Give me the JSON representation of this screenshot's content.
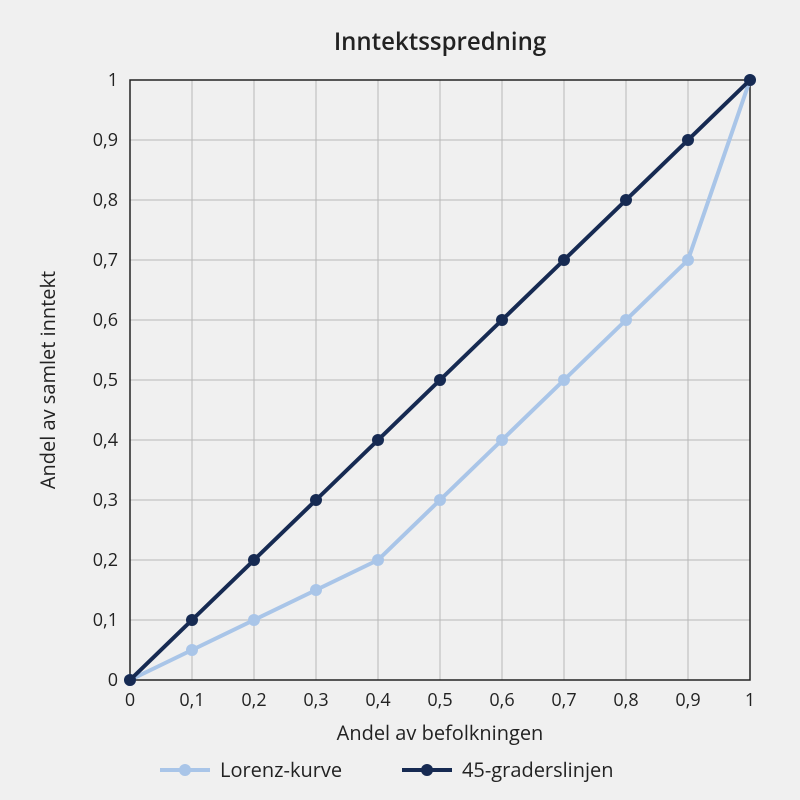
{
  "chart": {
    "type": "line",
    "title": "Inntektsspredning",
    "title_fontsize": 24,
    "xlabel": "Andel av befolkningen",
    "ylabel": "Andel av samlet inntekt",
    "label_fontsize": 20,
    "tick_fontsize": 18,
    "background_color": "#f0f0f0",
    "plot_background_color": "#f0f0f0",
    "grid_color": "#b8b8b8",
    "axis_color": "#222222",
    "xlim": [
      0,
      1
    ],
    "ylim": [
      0,
      1
    ],
    "xticks": [
      0,
      0.1,
      0.2,
      0.3,
      0.4,
      0.5,
      0.6,
      0.7,
      0.8,
      0.9,
      1
    ],
    "yticks": [
      0,
      0.1,
      0.2,
      0.3,
      0.4,
      0.5,
      0.6,
      0.7,
      0.8,
      0.9,
      1
    ],
    "xtick_labels": [
      "0",
      "0,1",
      "0,2",
      "0,3",
      "0,4",
      "0,5",
      "0,6",
      "0,7",
      "0,8",
      "0,9",
      "1"
    ],
    "ytick_labels": [
      "0",
      "0,1",
      "0,2",
      "0,3",
      "0,4",
      "0,5",
      "0,6",
      "0,7",
      "0,8",
      "0,9",
      "1"
    ],
    "line_width": 4,
    "marker_radius": 6,
    "series": [
      {
        "name": "Lorenz-kurve",
        "color": "#a9c5e8",
        "x": [
          0,
          0.1,
          0.2,
          0.3,
          0.4,
          0.5,
          0.6,
          0.7,
          0.8,
          0.9,
          1.0
        ],
        "y": [
          0,
          0.05,
          0.1,
          0.15,
          0.2,
          0.3,
          0.4,
          0.5,
          0.6,
          0.7,
          1.0
        ]
      },
      {
        "name": "45-graderslinjen",
        "color": "#162a52",
        "x": [
          0,
          0.1,
          0.2,
          0.3,
          0.4,
          0.5,
          0.6,
          0.7,
          0.8,
          0.9,
          1.0
        ],
        "y": [
          0,
          0.1,
          0.2,
          0.3,
          0.4,
          0.5,
          0.6,
          0.7,
          0.8,
          0.9,
          1.0
        ]
      }
    ],
    "legend": {
      "items": [
        "Lorenz-kurve",
        "45-graderslinjen"
      ],
      "fontsize": 20
    }
  }
}
